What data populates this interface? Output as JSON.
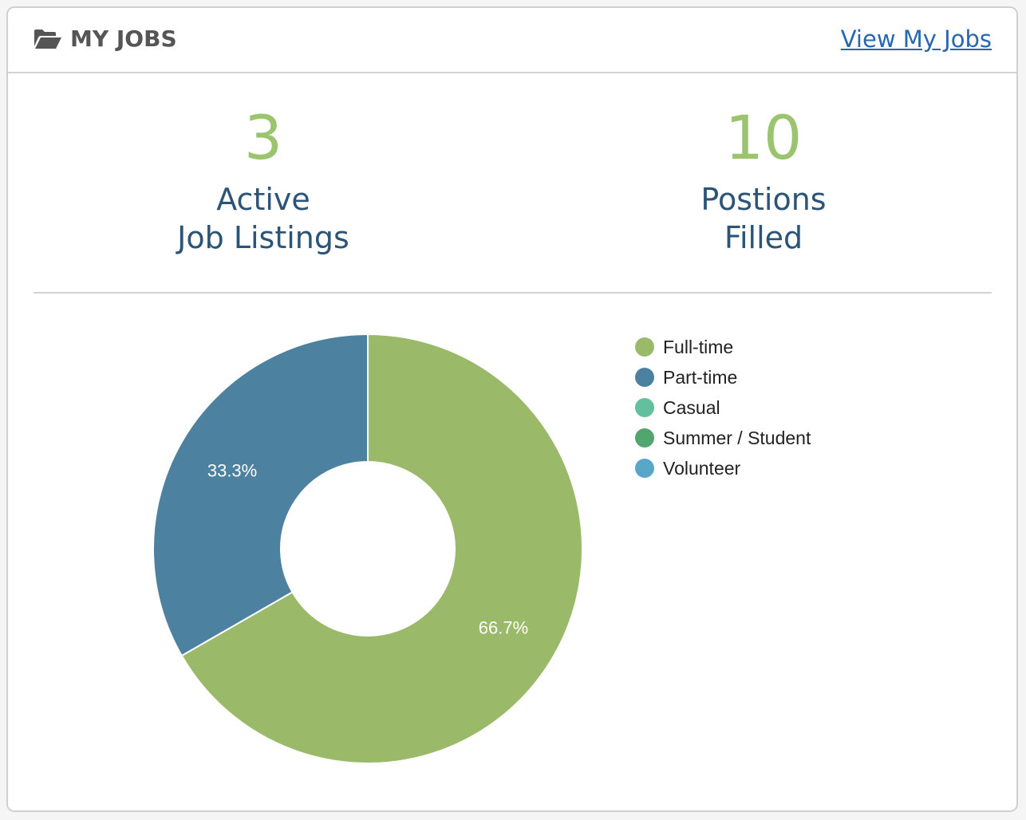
{
  "header": {
    "title": "MY JOBS",
    "icon": "folder-open-icon",
    "link": "View My Jobs"
  },
  "stats": [
    {
      "value": "3",
      "label_line1": "Active",
      "label_line2": "Job Listings"
    },
    {
      "value": "10",
      "label_line1": "Postions",
      "label_line2": "Filled"
    }
  ],
  "chart_data": {
    "type": "pie",
    "donut": true,
    "legend_position": "right",
    "series": [
      {
        "name": "Full-time",
        "value": 66.7,
        "label": "66.7%",
        "color": "#9aba6a"
      },
      {
        "name": "Part-time",
        "value": 33.3,
        "label": "33.3%",
        "color": "#4d81a0"
      },
      {
        "name": "Casual",
        "value": 0,
        "color": "#62c09f"
      },
      {
        "name": "Summer / Student",
        "value": 0,
        "color": "#52a56e"
      },
      {
        "name": "Volunteer",
        "value": 0,
        "color": "#58a6c8"
      }
    ]
  }
}
